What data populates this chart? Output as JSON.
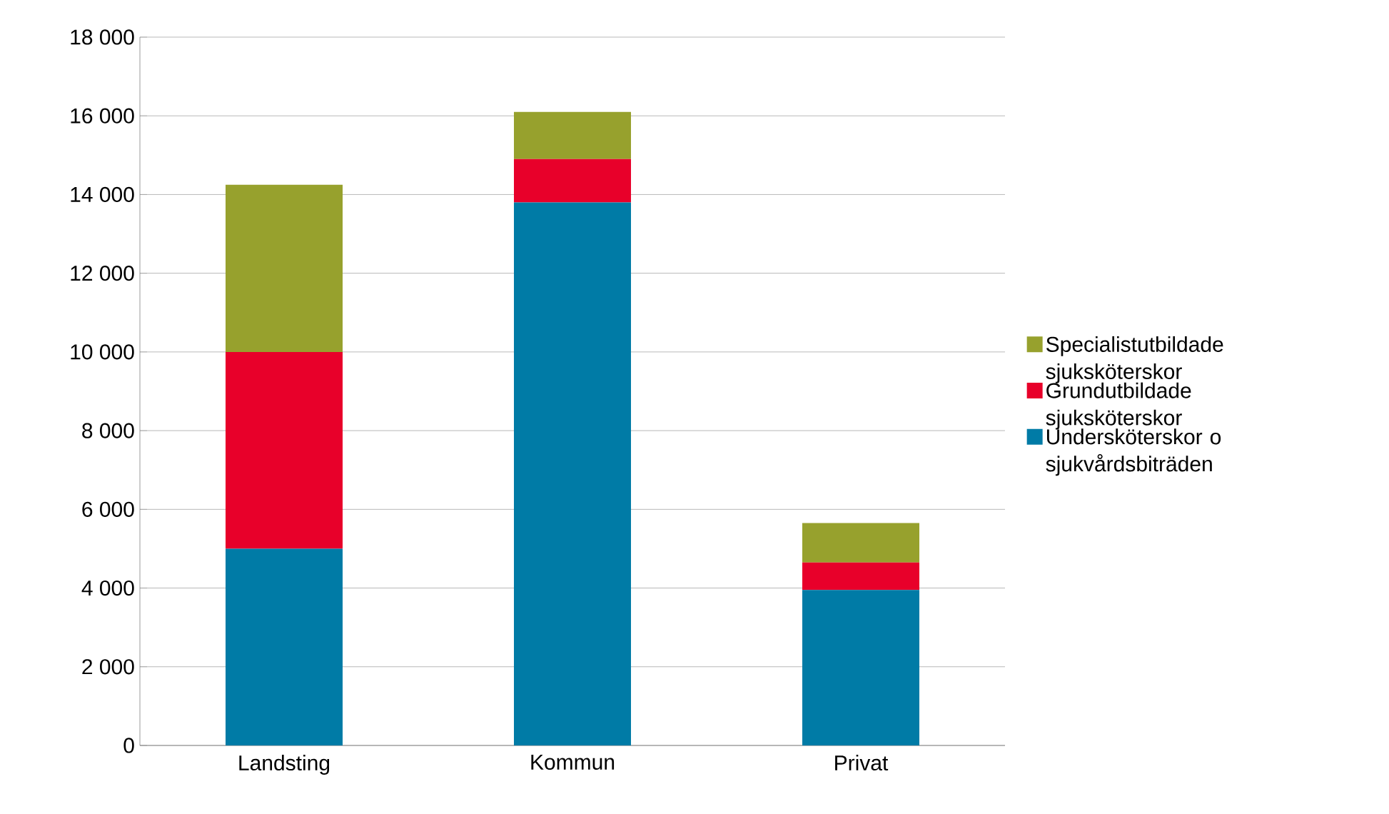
{
  "chart_data": {
    "type": "bar",
    "stacked": true,
    "categories": [
      "Landsting",
      "Kommun",
      "Privat"
    ],
    "series": [
      {
        "name": "Undersköterskor o sjukvårdsbiträden",
        "color": "#007ba6",
        "values": [
          5000,
          13800,
          3950
        ]
      },
      {
        "name": "Grundutbildade sjuksköterskor",
        "color": "#e8002a",
        "values": [
          5000,
          1100,
          700
        ]
      },
      {
        "name": "Specialistutbildade sjuksköterskor",
        "color": "#97a12d",
        "values": [
          4250,
          1200,
          1000
        ]
      }
    ],
    "ylim": [
      0,
      18000
    ],
    "yticks": [
      {
        "value": 0,
        "label": "0"
      },
      {
        "value": 2000,
        "label": "2 000"
      },
      {
        "value": 4000,
        "label": "4 000"
      },
      {
        "value": 6000,
        "label": "6 000"
      },
      {
        "value": 8000,
        "label": "8 000"
      },
      {
        "value": 10000,
        "label": "10 000"
      },
      {
        "value": 12000,
        "label": "12 000"
      },
      {
        "value": 14000,
        "label": "14 000"
      },
      {
        "value": 16000,
        "label": "16 000"
      },
      {
        "value": 18000,
        "label": "18 000"
      }
    ],
    "grid": "y",
    "legend": "right"
  }
}
